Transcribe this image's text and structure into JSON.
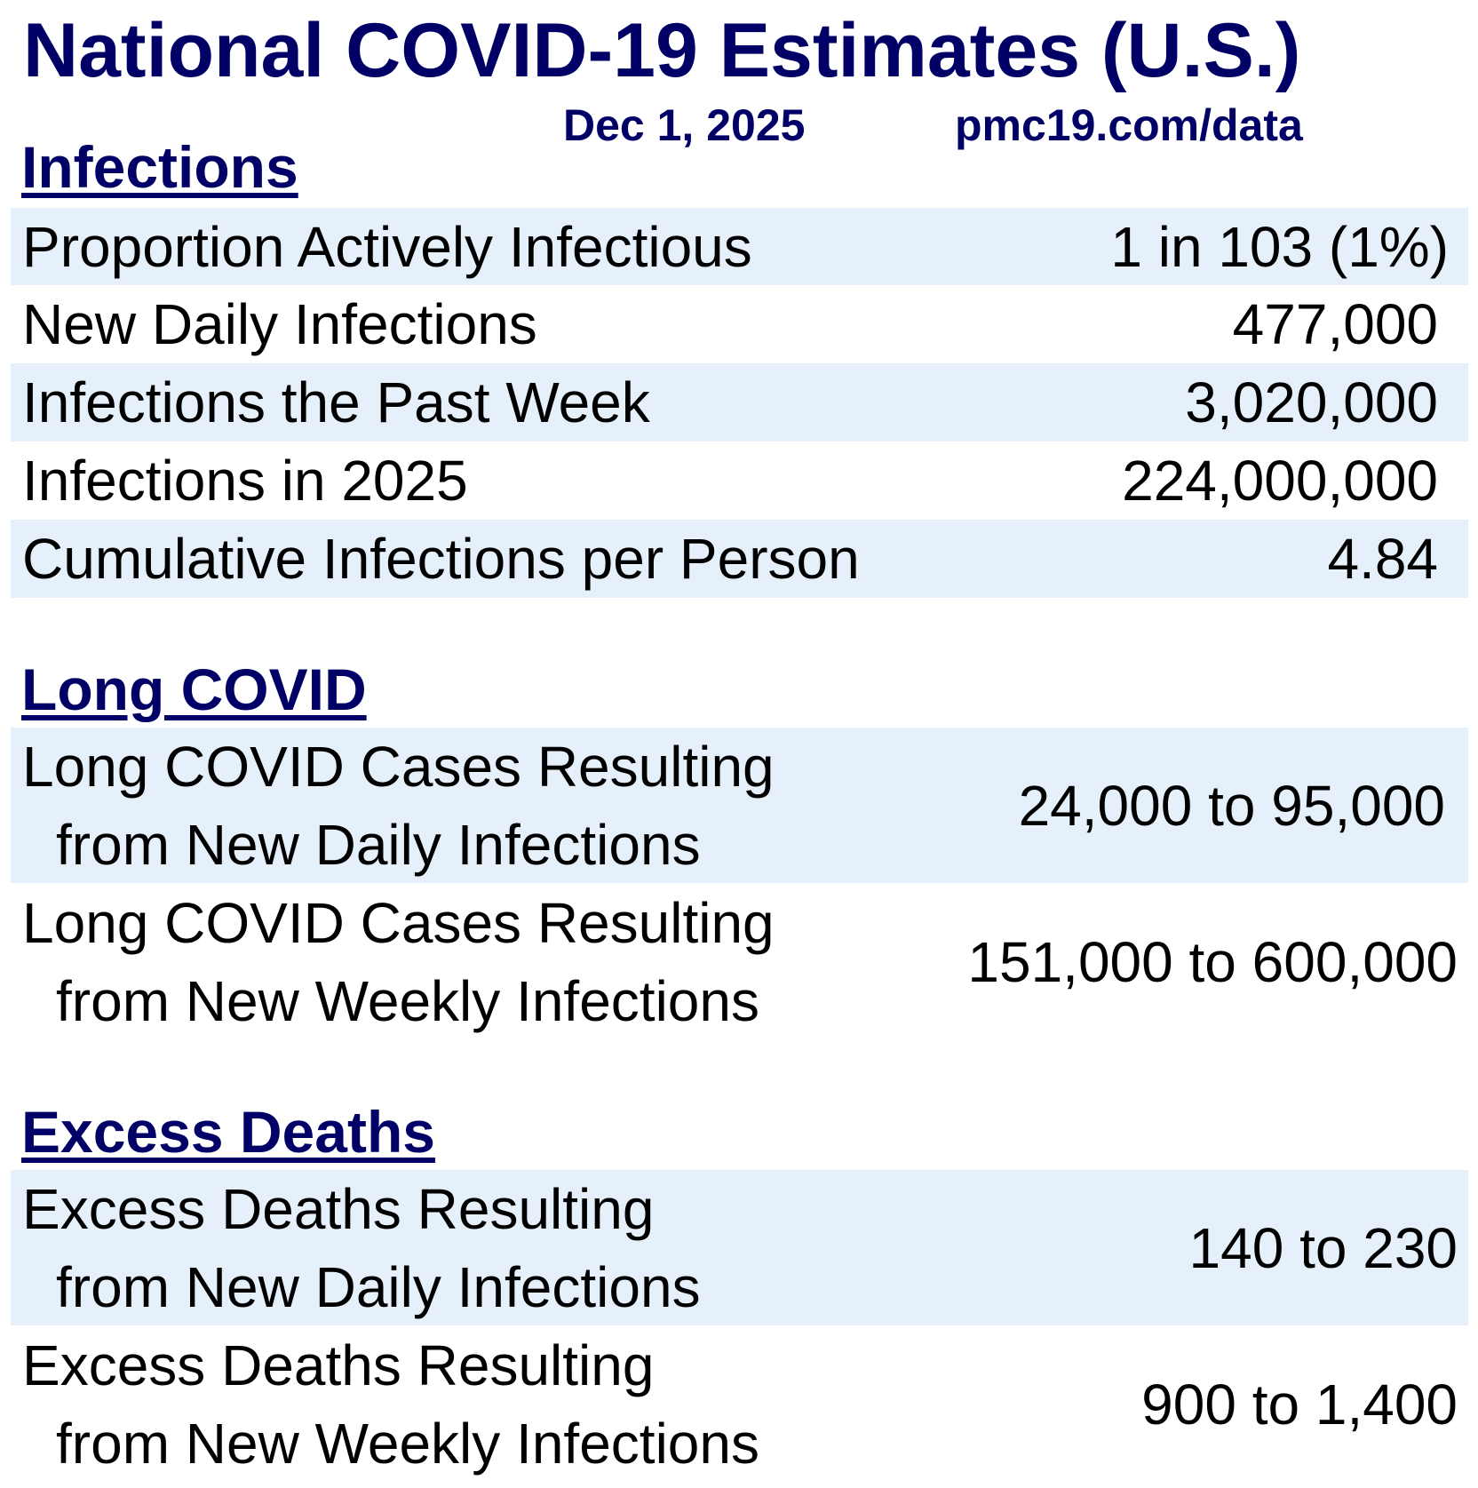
{
  "title": "National COVID-19 Estimates (U.S.)",
  "date": "Dec 1, 2025",
  "source": "pmc19.com/data",
  "colors": {
    "heading": "#000066",
    "row_shade": "#e6f0fa"
  },
  "infections": {
    "heading": "Infections",
    "rows": [
      {
        "label": "Proportion Actively Infectious",
        "value": "1 in 103 (1%)"
      },
      {
        "label": "New Daily Infections",
        "value": "477,000"
      },
      {
        "label": "Infections the Past Week",
        "value": "3,020,000"
      },
      {
        "label": "Infections in 2025",
        "value": "224,000,000"
      },
      {
        "label": "Cumulative Infections per Person",
        "value": "4.84"
      }
    ]
  },
  "long_covid": {
    "heading": "Long COVID",
    "rows": [
      {
        "label1": "Long COVID Cases Resulting",
        "label2": "from New Daily Infections",
        "value": "24,000 to 95,000"
      },
      {
        "label1": "Long COVID Cases Resulting",
        "label2": "from New Weekly Infections",
        "value": "151,000 to 600,000"
      }
    ]
  },
  "excess_deaths": {
    "heading": "Excess Deaths",
    "rows": [
      {
        "label1": "Excess Deaths Resulting",
        "label2": "from New Daily Infections",
        "value": "140 to 230"
      },
      {
        "label1": "Excess Deaths Resulting",
        "label2": "from New Weekly Infections",
        "value": "900 to 1,400"
      }
    ]
  }
}
